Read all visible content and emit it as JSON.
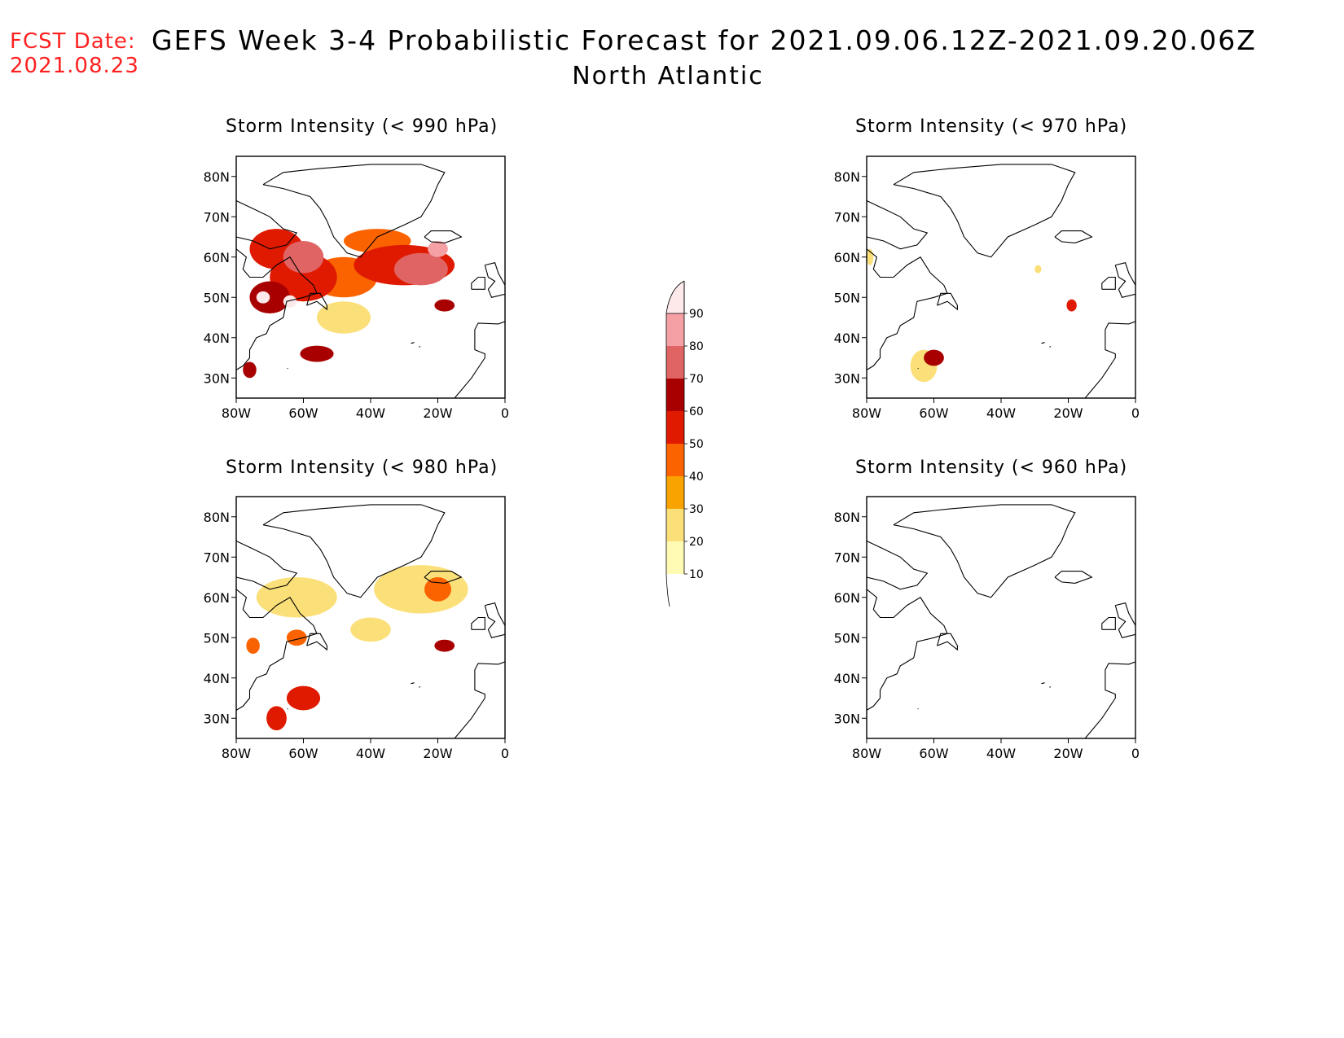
{
  "header": {
    "fcst_label": "FCST Date:",
    "fcst_date": "2021.08.23",
    "title": "GEFS Week 3-4 Probabilistic Forecast for 2021.09.06.12Z-2021.09.20.06Z",
    "subtitle": "North Atlantic"
  },
  "colors": {
    "coast": "#000000",
    "levels": [
      "#fffbb5",
      "#fbe07a",
      "#f9a300",
      "#fb6300",
      "#e01a00",
      "#a80000",
      "#e06464",
      "#f4a0a4",
      "#fde8ea"
    ]
  },
  "legend": {
    "ticks": [
      "10",
      "20",
      "30",
      "40",
      "50",
      "60",
      "70",
      "80",
      "90"
    ]
  },
  "axes": {
    "x_ticks": [
      "80W",
      "60W",
      "40W",
      "20W",
      "0"
    ],
    "y_ticks": [
      "80N",
      "70N",
      "60N",
      "50N",
      "40N",
      "30N"
    ],
    "lon_range": [
      -80,
      0
    ],
    "lat_range": [
      25,
      85
    ]
  },
  "panels": [
    {
      "title": "Storm Intensity (< 990 hPa)",
      "blobs": [
        {
          "lon": -68,
          "lat": 62,
          "rx": 8,
          "ry": 5,
          "level": 4
        },
        {
          "lon": -60,
          "lat": 55,
          "rx": 10,
          "ry": 6,
          "level": 4
        },
        {
          "lon": -30,
          "lat": 58,
          "rx": 15,
          "ry": 5,
          "level": 4
        },
        {
          "lon": -48,
          "lat": 55,
          "rx": 10,
          "ry": 5,
          "level": 3
        },
        {
          "lon": -70,
          "lat": 50,
          "rx": 6,
          "ry": 4,
          "level": 5
        },
        {
          "lon": -25,
          "lat": 57,
          "rx": 8,
          "ry": 4,
          "level": 6
        },
        {
          "lon": -60,
          "lat": 60,
          "rx": 6,
          "ry": 4,
          "level": 6
        },
        {
          "lon": -72,
          "lat": 50,
          "rx": 2,
          "ry": 1.5,
          "level": 8
        },
        {
          "lon": -64,
          "lat": 49,
          "rx": 2,
          "ry": 1.5,
          "level": 8
        },
        {
          "lon": -20,
          "lat": 62,
          "rx": 3,
          "ry": 2,
          "level": 7
        },
        {
          "lon": -56,
          "lat": 36,
          "rx": 5,
          "ry": 2,
          "level": 5
        },
        {
          "lon": -18,
          "lat": 48,
          "rx": 3,
          "ry": 1.5,
          "level": 5
        },
        {
          "lon": -76,
          "lat": 32,
          "rx": 2,
          "ry": 2,
          "level": 5
        },
        {
          "lon": -48,
          "lat": 45,
          "rx": 8,
          "ry": 4,
          "level": 1
        },
        {
          "lon": -38,
          "lat": 64,
          "rx": 10,
          "ry": 3,
          "level": 3
        }
      ]
    },
    {
      "title": "Storm Intensity (< 970 hPa)",
      "blobs": [
        {
          "lon": -60,
          "lat": 35,
          "rx": 3,
          "ry": 2,
          "level": 5
        },
        {
          "lon": -63,
          "lat": 33,
          "rx": 4,
          "ry": 4,
          "level": 1
        },
        {
          "lon": -19,
          "lat": 48,
          "rx": 1.5,
          "ry": 1.5,
          "level": 4
        },
        {
          "lon": -29,
          "lat": 57,
          "rx": 1,
          "ry": 1,
          "level": 1
        },
        {
          "lon": -79,
          "lat": 60,
          "rx": 1,
          "ry": 2,
          "level": 1
        }
      ]
    },
    {
      "title": "Storm Intensity (< 980 hPa)",
      "blobs": [
        {
          "lon": -25,
          "lat": 62,
          "rx": 14,
          "ry": 6,
          "level": 1
        },
        {
          "lon": -20,
          "lat": 62,
          "rx": 4,
          "ry": 3,
          "level": 3
        },
        {
          "lon": -62,
          "lat": 60,
          "rx": 12,
          "ry": 5,
          "level": 1
        },
        {
          "lon": -60,
          "lat": 35,
          "rx": 5,
          "ry": 3,
          "level": 4
        },
        {
          "lon": -68,
          "lat": 30,
          "rx": 3,
          "ry": 3,
          "level": 4
        },
        {
          "lon": -18,
          "lat": 48,
          "rx": 3,
          "ry": 1.5,
          "level": 5
        },
        {
          "lon": -75,
          "lat": 48,
          "rx": 2,
          "ry": 2,
          "level": 3
        },
        {
          "lon": -62,
          "lat": 50,
          "rx": 3,
          "ry": 2,
          "level": 3
        },
        {
          "lon": -40,
          "lat": 52,
          "rx": 6,
          "ry": 3,
          "level": 1
        }
      ]
    },
    {
      "title": "Storm Intensity (< 960 hPa)",
      "blobs": []
    }
  ]
}
